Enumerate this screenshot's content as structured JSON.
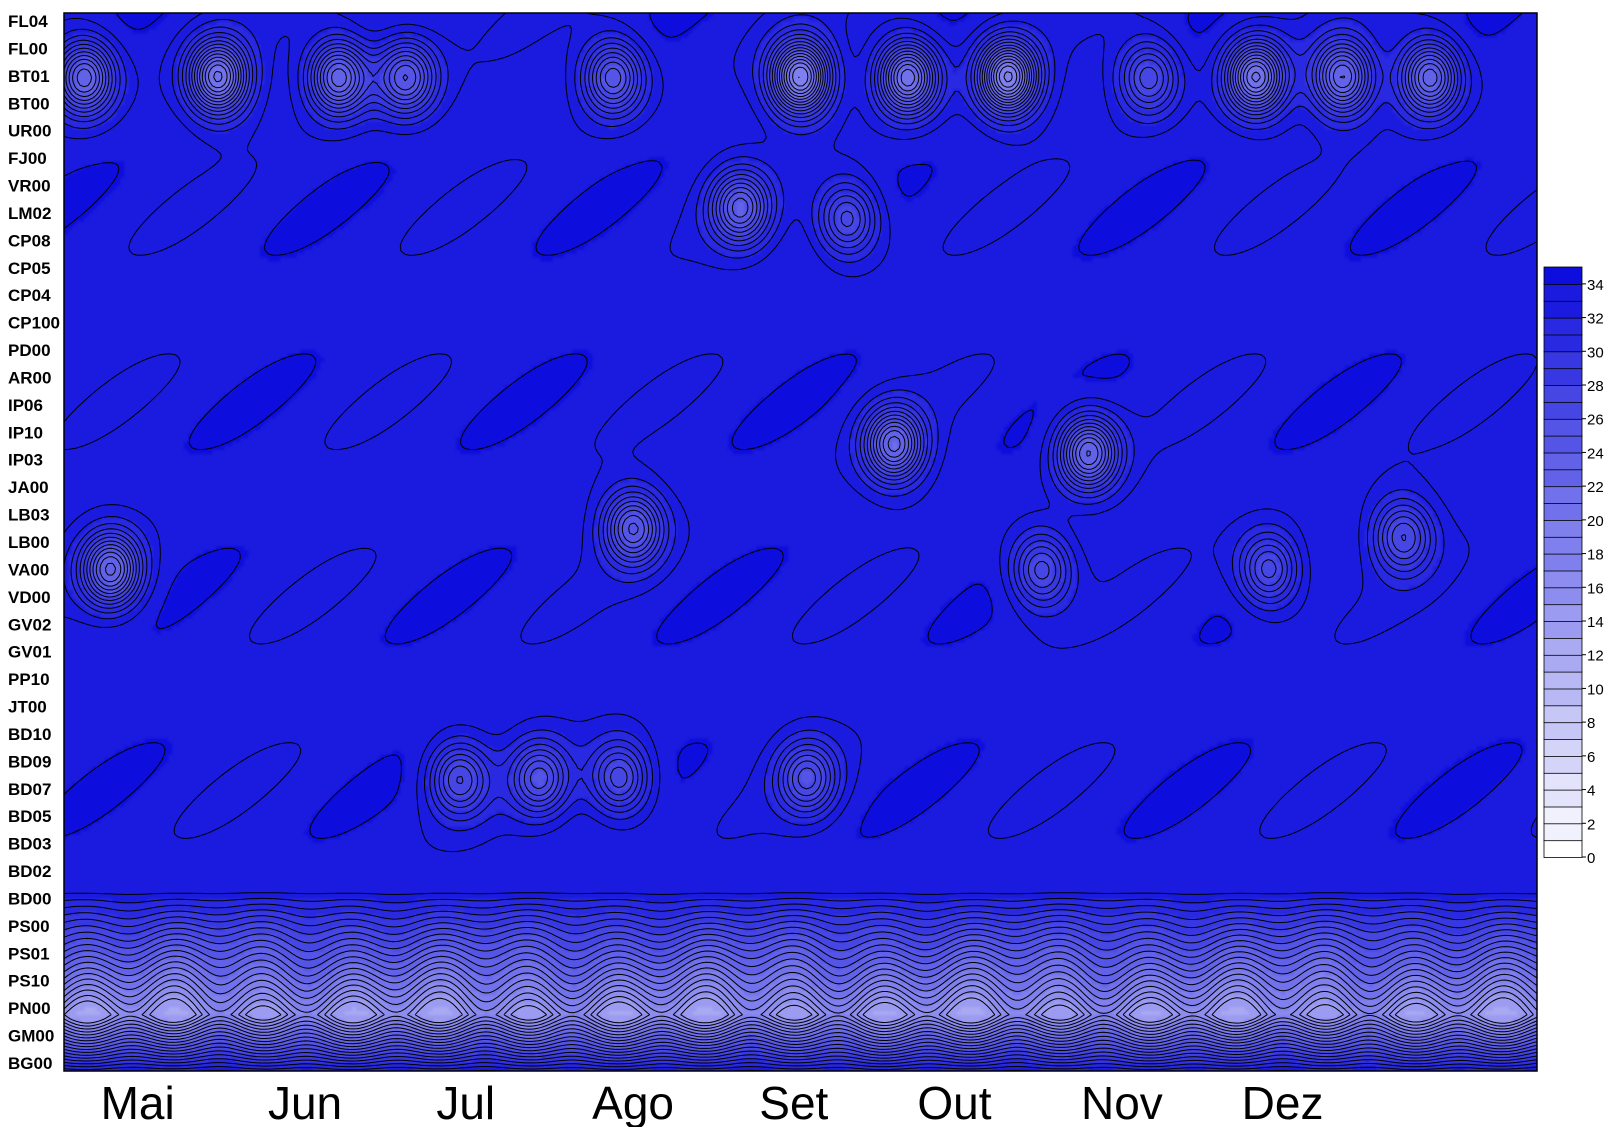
{
  "chart_data": {
    "type": "heatmap",
    "title": "",
    "xlabel": "",
    "ylabel": "",
    "y_categories": [
      "FL04",
      "FL00",
      "BT01",
      "BT00",
      "UR00",
      "FJ00",
      "VR00",
      "LM02",
      "CP08",
      "CP05",
      "CP04",
      "CP100",
      "PD00",
      "AR00",
      "IP06",
      "IP10",
      "IP03",
      "JA00",
      "LB03",
      "LB00",
      "VA00",
      "VD00",
      "GV02",
      "GV01",
      "PP10",
      "JT00",
      "BD10",
      "BD09",
      "BD07",
      "BD05",
      "BD03",
      "BD02",
      "BD00",
      "PS00",
      "PS01",
      "PS10",
      "PN00",
      "GM00",
      "BG00"
    ],
    "x_categories": [
      "Mai",
      "Jun",
      "Jul",
      "Ago",
      "Set",
      "Out",
      "Nov",
      "Dez"
    ],
    "colorbar": {
      "ticks": [
        34,
        32,
        30,
        28,
        26,
        24,
        22,
        20,
        18,
        16,
        14,
        12,
        10,
        8,
        6,
        4,
        2,
        0
      ],
      "range": [
        0,
        35
      ],
      "color_low": "#ffffff",
      "color_high": "#0d0ddd"
    },
    "background_value": 33.5,
    "features": [
      {
        "label": "BT01 Mai",
        "x": 0.15,
        "y": 2.3,
        "value": 22
      },
      {
        "label": "BT01 Jun",
        "x": 1.15,
        "y": 2.3,
        "value": 20
      },
      {
        "label": "BT01 Jun-Jul",
        "x": 2.05,
        "y": 2.3,
        "value": 22
      },
      {
        "label": "BT01 Jul",
        "x": 2.55,
        "y": 2.3,
        "value": 24
      },
      {
        "label": "BT01 Ago",
        "x": 4.1,
        "y": 2.3,
        "value": 24
      },
      {
        "label": "BT01 Set",
        "x": 5.5,
        "y": 2.3,
        "value": 18
      },
      {
        "label": "BT01 Set 2",
        "x": 6.3,
        "y": 2.3,
        "value": 20
      },
      {
        "label": "BT01 Out",
        "x": 7.05,
        "y": 2.3,
        "value": 18
      },
      {
        "label": "BT01 Out-Nov",
        "x": 8.1,
        "y": 2.3,
        "value": 26
      },
      {
        "label": "BT01 Nov",
        "x": 8.9,
        "y": 2.3,
        "value": 20
      },
      {
        "label": "BT01 Nov 2",
        "x": 9.55,
        "y": 2.3,
        "value": 22
      },
      {
        "label": "BT01 Dez",
        "x": 10.2,
        "y": 2.3,
        "value": 22
      },
      {
        "label": "LM02 Ago",
        "x": 5.05,
        "y": 7.0,
        "value": 24
      },
      {
        "label": "LM02 Set",
        "x": 5.85,
        "y": 7.4,
        "value": 26
      },
      {
        "label": "IP10 Set",
        "x": 6.2,
        "y": 15.5,
        "value": 22
      },
      {
        "label": "IP10 Out",
        "x": 7.65,
        "y": 15.8,
        "value": 22
      },
      {
        "label": "LB03 Ago",
        "x": 4.25,
        "y": 18.5,
        "value": 24
      },
      {
        "label": "VA00 Mai",
        "x": 0.35,
        "y": 20.0,
        "value": 22
      },
      {
        "label": "VA00 Out",
        "x": 7.3,
        "y": 20.0,
        "value": 26
      },
      {
        "label": "VA00 Nov",
        "x": 9.0,
        "y": 20.0,
        "value": 26
      },
      {
        "label": "BD09 Jul",
        "x": 2.95,
        "y": 27.5,
        "value": 26
      },
      {
        "label": "BD09 Jul 2",
        "x": 3.55,
        "y": 27.5,
        "value": 26
      },
      {
        "label": "BD09 Ago",
        "x": 4.15,
        "y": 27.5,
        "value": 26
      },
      {
        "label": "BD09 Set",
        "x": 5.55,
        "y": 27.5,
        "value": 26
      },
      {
        "label": "Dez LB03",
        "x": 10.0,
        "y": 18.8,
        "value": 26
      }
    ],
    "bottom_band": {
      "from_category": "BD00",
      "to_category": "BG00",
      "min_value": 15,
      "min_at": "PN00"
    }
  }
}
